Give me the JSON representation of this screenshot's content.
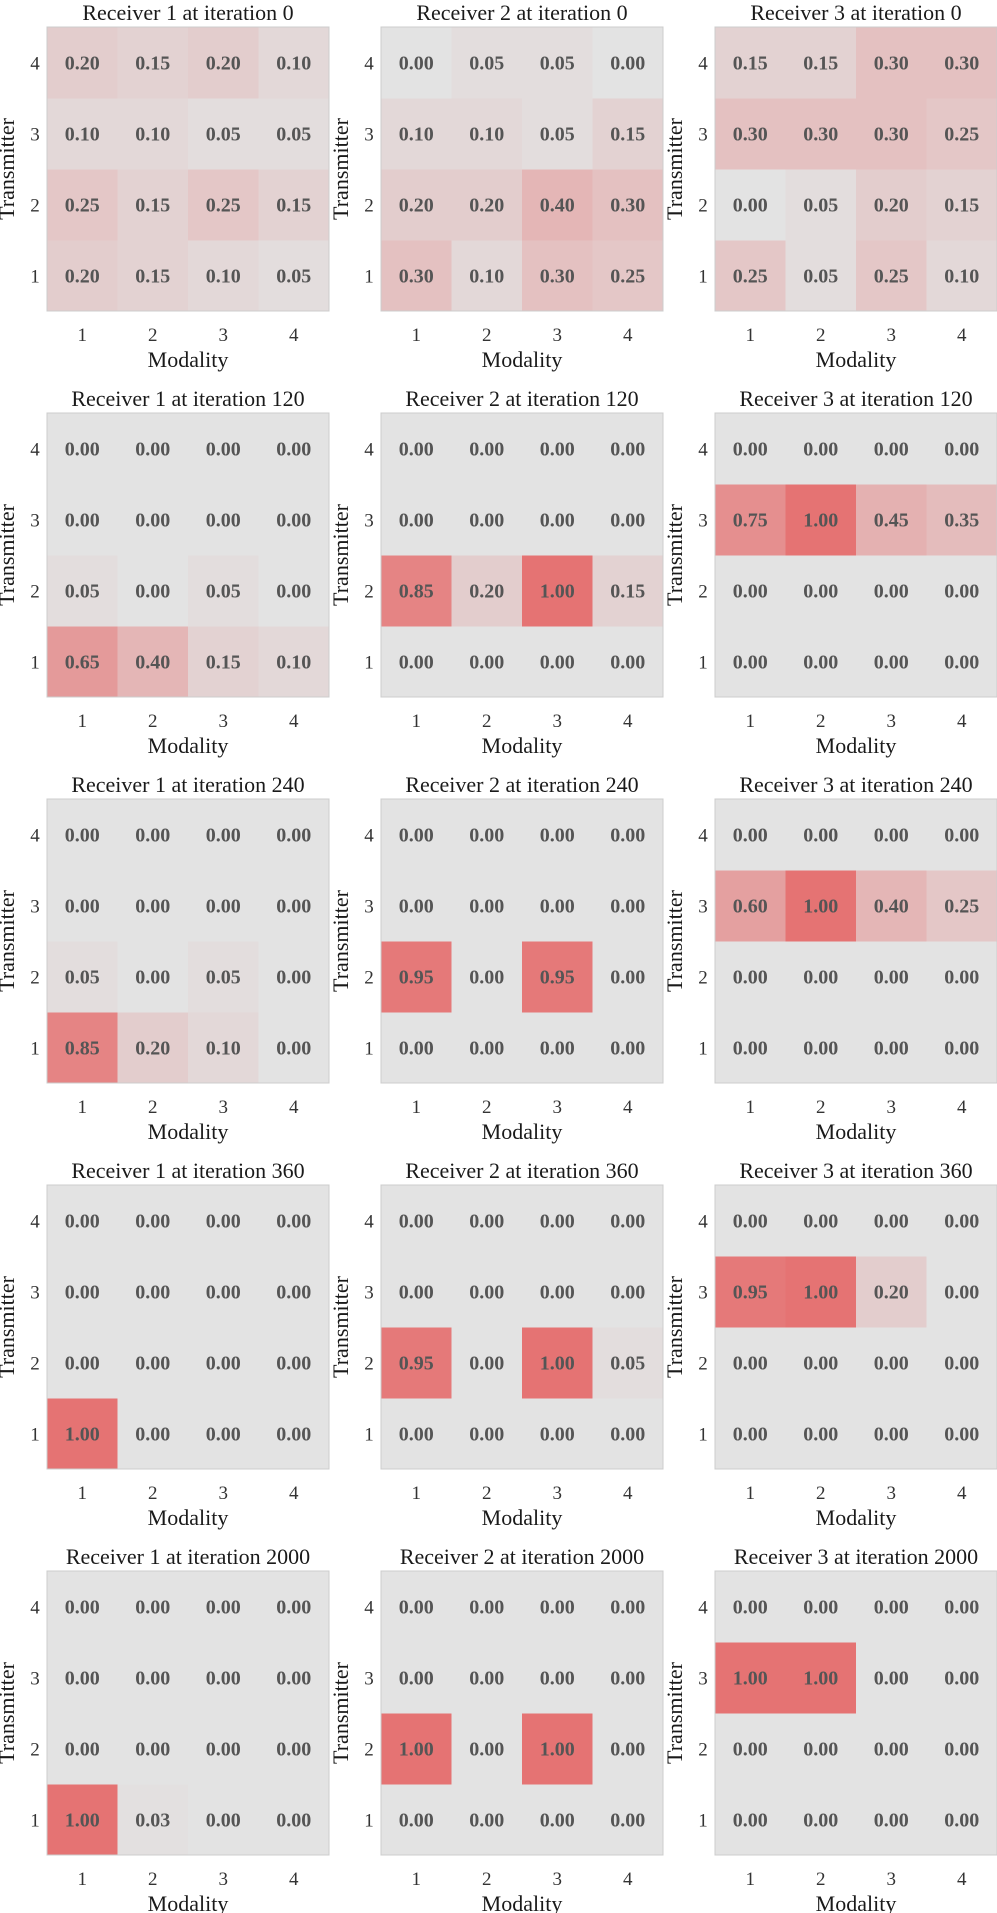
{
  "chart_data": {
    "type": "heatmap",
    "xlabel": "Modality",
    "ylabel": "Transmitter",
    "x_ticks": [
      "1",
      "2",
      "3",
      "4"
    ],
    "y_ticks": [
      "1",
      "2",
      "3",
      "4"
    ],
    "value_range": [
      0,
      1
    ],
    "colors": {
      "low": "#e3e3e3",
      "high": "#e57373",
      "text": "#555555",
      "frame": "#cccccc"
    },
    "grid": false,
    "panels": [
      {
        "title": "Receiver 1 at iteration 0",
        "rows": [
          [
            0.2,
            0.15,
            0.1,
            0.05
          ],
          [
            0.25,
            0.15,
            0.25,
            0.15
          ],
          [
            0.1,
            0.1,
            0.05,
            0.05
          ],
          [
            0.2,
            0.15,
            0.2,
            0.1
          ]
        ]
      },
      {
        "title": "Receiver 2 at iteration 0",
        "rows": [
          [
            0.3,
            0.1,
            0.3,
            0.25
          ],
          [
            0.2,
            0.2,
            0.4,
            0.3
          ],
          [
            0.1,
            0.1,
            0.05,
            0.15
          ],
          [
            0.0,
            0.05,
            0.05,
            0.0
          ]
        ]
      },
      {
        "title": "Receiver 3 at iteration 0",
        "rows": [
          [
            0.25,
            0.05,
            0.25,
            0.1
          ],
          [
            0.0,
            0.05,
            0.2,
            0.15
          ],
          [
            0.3,
            0.3,
            0.3,
            0.25
          ],
          [
            0.15,
            0.15,
            0.3,
            0.3
          ]
        ]
      },
      {
        "title": "Receiver 1 at iteration 120",
        "rows": [
          [
            0.65,
            0.4,
            0.15,
            0.1
          ],
          [
            0.05,
            0.0,
            0.05,
            0.0
          ],
          [
            0.0,
            0.0,
            0.0,
            0.0
          ],
          [
            0.0,
            0.0,
            0.0,
            0.0
          ]
        ]
      },
      {
        "title": "Receiver 2 at iteration 120",
        "rows": [
          [
            0.0,
            0.0,
            0.0,
            0.0
          ],
          [
            0.85,
            0.2,
            1.0,
            0.15
          ],
          [
            0.0,
            0.0,
            0.0,
            0.0
          ],
          [
            0.0,
            0.0,
            0.0,
            0.0
          ]
        ]
      },
      {
        "title": "Receiver 3 at iteration 120",
        "rows": [
          [
            0.0,
            0.0,
            0.0,
            0.0
          ],
          [
            0.0,
            0.0,
            0.0,
            0.0
          ],
          [
            0.75,
            1.0,
            0.45,
            0.35
          ],
          [
            0.0,
            0.0,
            0.0,
            0.0
          ]
        ]
      },
      {
        "title": "Receiver 1 at iteration 240",
        "rows": [
          [
            0.85,
            0.2,
            0.1,
            0.0
          ],
          [
            0.05,
            0.0,
            0.05,
            0.0
          ],
          [
            0.0,
            0.0,
            0.0,
            0.0
          ],
          [
            0.0,
            0.0,
            0.0,
            0.0
          ]
        ]
      },
      {
        "title": "Receiver 2 at iteration 240",
        "rows": [
          [
            0.0,
            0.0,
            0.0,
            0.0
          ],
          [
            0.95,
            0.0,
            0.95,
            0.0
          ],
          [
            0.0,
            0.0,
            0.0,
            0.0
          ],
          [
            0.0,
            0.0,
            0.0,
            0.0
          ]
        ]
      },
      {
        "title": "Receiver 3 at iteration 240",
        "rows": [
          [
            0.0,
            0.0,
            0.0,
            0.0
          ],
          [
            0.0,
            0.0,
            0.0,
            0.0
          ],
          [
            0.6,
            1.0,
            0.4,
            0.25
          ],
          [
            0.0,
            0.0,
            0.0,
            0.0
          ]
        ]
      },
      {
        "title": "Receiver 1 at iteration 360",
        "rows": [
          [
            1.0,
            0.0,
            0.0,
            0.0
          ],
          [
            0.0,
            0.0,
            0.0,
            0.0
          ],
          [
            0.0,
            0.0,
            0.0,
            0.0
          ],
          [
            0.0,
            0.0,
            0.0,
            0.0
          ]
        ]
      },
      {
        "title": "Receiver 2 at iteration 360",
        "rows": [
          [
            0.0,
            0.0,
            0.0,
            0.0
          ],
          [
            0.95,
            0.0,
            1.0,
            0.05
          ],
          [
            0.0,
            0.0,
            0.0,
            0.0
          ],
          [
            0.0,
            0.0,
            0.0,
            0.0
          ]
        ]
      },
      {
        "title": "Receiver 3 at iteration 360",
        "rows": [
          [
            0.0,
            0.0,
            0.0,
            0.0
          ],
          [
            0.0,
            0.0,
            0.0,
            0.0
          ],
          [
            0.95,
            1.0,
            0.2,
            0.0
          ],
          [
            0.0,
            0.0,
            0.0,
            0.0
          ]
        ]
      },
      {
        "title": "Receiver 1 at iteration 2000",
        "rows": [
          [
            1.0,
            0.03,
            0.0,
            0.0
          ],
          [
            0.0,
            0.0,
            0.0,
            0.0
          ],
          [
            0.0,
            0.0,
            0.0,
            0.0
          ],
          [
            0.0,
            0.0,
            0.0,
            0.0
          ]
        ]
      },
      {
        "title": "Receiver 2 at iteration 2000",
        "rows": [
          [
            0.0,
            0.0,
            0.0,
            0.0
          ],
          [
            1.0,
            0.0,
            1.0,
            0.0
          ],
          [
            0.0,
            0.0,
            0.0,
            0.0
          ],
          [
            0.0,
            0.0,
            0.0,
            0.0
          ]
        ]
      },
      {
        "title": "Receiver 3 at iteration 2000",
        "rows": [
          [
            0.0,
            0.0,
            0.0,
            0.0
          ],
          [
            0.0,
            0.0,
            0.0,
            0.0
          ],
          [
            1.0,
            1.0,
            0.0,
            0.0
          ],
          [
            0.0,
            0.0,
            0.0,
            0.0
          ]
        ]
      }
    ]
  }
}
